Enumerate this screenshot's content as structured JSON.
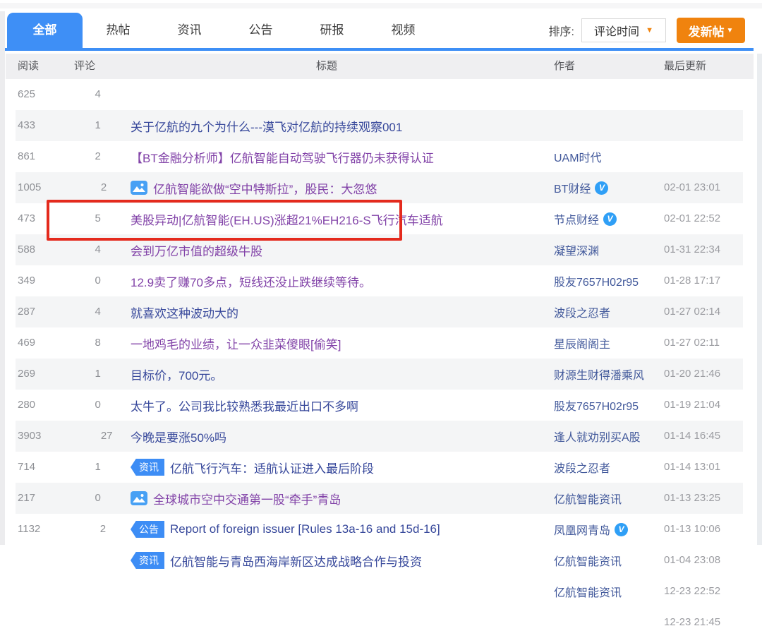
{
  "tabs": [
    {
      "label": "全部",
      "active": true
    },
    {
      "label": "热帖",
      "active": false
    },
    {
      "label": "资讯",
      "active": false
    },
    {
      "label": "公告",
      "active": false
    },
    {
      "label": "研报",
      "active": false
    },
    {
      "label": "视频",
      "active": false
    }
  ],
  "sort": {
    "label": "排序:",
    "value": "评论时间"
  },
  "new_post": {
    "label": "发新帖"
  },
  "icons": {
    "sort_caret": "▼",
    "new_post_caret": "▼",
    "verified_glyph": "V"
  },
  "columns": {
    "reads": "阅读",
    "comments": "评论",
    "title": "标题",
    "author": "作者",
    "updated": "最后更新"
  },
  "colors": {
    "accent_blue": "#3e8ff6",
    "badge_blue": "#3d8df5",
    "button_orange": "#f0830e",
    "annotation_red": "#e42a1d",
    "title_unvisited": "#37489b",
    "title_visited": "#8243a8",
    "author_navy": "#42599b",
    "muted_gray": "#8e9095"
  },
  "annotation": {
    "type": "red-box",
    "around_row_title": "会到万亿市值的超级牛股"
  },
  "rows": [
    {
      "reads": "625",
      "comments": "4",
      "title": "关于亿航的九个为什么---漠飞对亿航的持续观察001",
      "visited": false,
      "tag": null,
      "thumb": false,
      "author": "UAM时代",
      "verified": false,
      "updated": "02-01 23:01"
    },
    {
      "reads": "433",
      "comments": "1",
      "title": "【BT金融分析师】亿航智能自动驾驶飞行器仍未获得认证",
      "visited": true,
      "tag": null,
      "thumb": false,
      "author": "BT财经",
      "verified": true,
      "updated": "02-01 22:52"
    },
    {
      "reads": "861",
      "comments": "2",
      "title": "亿航智能欲做“空中特斯拉”，股民：大忽悠",
      "visited": true,
      "tag": null,
      "thumb": true,
      "author": "节点财经",
      "verified": true,
      "updated": "01-31 22:34"
    },
    {
      "reads": "1005",
      "comments": "2",
      "title": "美股异动|亿航智能(EH.US)涨超21%EH216-S飞行汽车适航",
      "visited": true,
      "tag": null,
      "thumb": false,
      "author": "凝望深渊",
      "verified": false,
      "updated": "01-28 17:17"
    },
    {
      "reads": "473",
      "comments": "5",
      "title": "会到万亿市值的超级牛股",
      "visited": true,
      "tag": null,
      "thumb": false,
      "author": "股友7657H02r95",
      "verified": false,
      "updated": "01-27 02:14"
    },
    {
      "reads": "588",
      "comments": "4",
      "title": "12.9卖了赚70多点，短线还没止跌继续等待。",
      "visited": true,
      "tag": null,
      "thumb": false,
      "author": "波段之忍者",
      "verified": false,
      "updated": "01-27 02:11"
    },
    {
      "reads": "349",
      "comments": "0",
      "title": "就喜欢这种波动大的",
      "visited": false,
      "tag": null,
      "thumb": false,
      "author": "星辰阁阁主",
      "verified": false,
      "updated": "01-20 21:46"
    },
    {
      "reads": "287",
      "comments": "4",
      "title": "一地鸡毛的业绩，让一众韭菜傻眼[偷笑]",
      "visited": true,
      "tag": null,
      "thumb": false,
      "author": "财源生财得潘乘风",
      "verified": false,
      "updated": "01-19 21:04"
    },
    {
      "reads": "469",
      "comments": "8",
      "title": "目标价，700元。",
      "visited": false,
      "tag": null,
      "thumb": false,
      "author": "股友7657H02r95",
      "verified": false,
      "updated": "01-14 16:45"
    },
    {
      "reads": "269",
      "comments": "1",
      "title": "太牛了。公司我比较熟悉我最近出口不多啊",
      "visited": false,
      "tag": null,
      "thumb": false,
      "author": "逢人就劝别买A股",
      "verified": false,
      "updated": "01-14 13:01"
    },
    {
      "reads": "280",
      "comments": "0",
      "title": "今晚是要涨50%吗",
      "visited": false,
      "tag": null,
      "thumb": false,
      "author": "波段之忍者",
      "verified": false,
      "updated": "01-13 23:25"
    },
    {
      "reads": "3903",
      "comments": "27",
      "title": "亿航飞行汽车：适航认证进入最后阶段",
      "visited": false,
      "tag": "资讯",
      "thumb": false,
      "author": "亿航智能资讯",
      "verified": false,
      "updated": "01-13 10:06"
    },
    {
      "reads": "714",
      "comments": "1",
      "title": "全球城市空中交通第一股“牵手”青岛",
      "visited": true,
      "tag": null,
      "thumb": true,
      "author": "凤凰网青岛",
      "verified": true,
      "updated": "01-04 23:08"
    },
    {
      "reads": "217",
      "comments": "0",
      "title": "Report of foreign issuer [Rules 13a-16 and 15d-16]",
      "visited": false,
      "tag": "公告",
      "thumb": false,
      "author": "亿航智能资讯",
      "verified": false,
      "updated": "12-23 22:52"
    },
    {
      "reads": "1132",
      "comments": "2",
      "title": "亿航智能与青岛西海岸新区达成战略合作与投资",
      "visited": false,
      "tag": "资讯",
      "thumb": false,
      "author": "亿航智能资讯",
      "verified": false,
      "updated": "12-23 21:45"
    }
  ]
}
